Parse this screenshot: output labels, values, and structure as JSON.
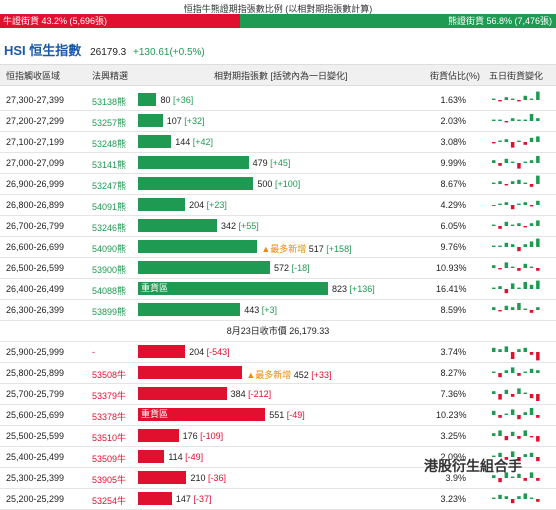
{
  "top": {
    "title": "恒指牛熊證期指張數比例 (以相對期指張數計算)",
    "bull_label": "牛證街貨 43.2% (5,696張)",
    "bear_label": "熊證街貨 56.8% (7,476張)",
    "bull_fraction": 0.432,
    "colors": {
      "bull": "#e0102e",
      "bear": "#1f9a52"
    }
  },
  "index": {
    "name": "HSI 恒生指數",
    "value": "26179.3",
    "change": "+130.61(+0.5%)"
  },
  "headers": {
    "range": "恒指觸收區域",
    "code": "法興精選",
    "contracts": "相對期指張數 [括號內為一日變化]",
    "share": "街貨佔比(%)",
    "five_day": "五日街貨變化"
  },
  "bear_rows": [
    {
      "range": "27,300-27,399",
      "code": "53138熊",
      "value": 80,
      "delta": "[+36]",
      "label": "",
      "share": "1.63%",
      "spark": [
        1,
        -1,
        2,
        1,
        -1,
        3,
        1,
        6
      ]
    },
    {
      "range": "27,200-27,299",
      "code": "53257熊",
      "value": 107,
      "delta": "[+32]",
      "label": "",
      "share": "2.03%",
      "spark": [
        1,
        1,
        -1,
        2,
        1,
        1,
        5,
        2
      ]
    },
    {
      "range": "27,100-27,199",
      "code": "53248熊",
      "value": 144,
      "delta": "[+42]",
      "label": "",
      "share": "3.08%",
      "spark": [
        -1,
        1,
        2,
        -4,
        1,
        -2,
        3,
        4
      ]
    },
    {
      "range": "27,000-27,099",
      "code": "53141熊",
      "value": 479,
      "delta": "[+45]",
      "label": "",
      "share": "9.99%",
      "spark": [
        2,
        -2,
        3,
        1,
        -4,
        1,
        2,
        5
      ]
    },
    {
      "range": "26,900-26,999",
      "code": "53247熊",
      "value": 500,
      "delta": "[+100]",
      "label": "",
      "share": "8.67%",
      "spark": [
        1,
        2,
        -1,
        2,
        3,
        1,
        -2,
        6
      ]
    },
    {
      "range": "26,800-26,899",
      "code": "54091熊",
      "value": 204,
      "delta": "[+23]",
      "label": "",
      "share": "4.29%",
      "spark": [
        0,
        1,
        2,
        -3,
        1,
        2,
        -1,
        3
      ]
    },
    {
      "range": "26,700-26,799",
      "code": "53246熊",
      "value": 342,
      "delta": "[+55]",
      "label": "",
      "share": "6.05%",
      "spark": [
        1,
        -2,
        3,
        1,
        2,
        -1,
        2,
        4
      ]
    },
    {
      "range": "26,600-26,699",
      "code": "54090熊",
      "value": 517,
      "delta": "[+158]",
      "label": "▲最多新增",
      "share": "9.76%",
      "spark": [
        1,
        1,
        3,
        2,
        -3,
        2,
        4,
        6
      ]
    },
    {
      "range": "26,500-26,599",
      "code": "53900熊",
      "value": 572,
      "delta": "[-18]",
      "label": "",
      "share": "10.93%",
      "spark": [
        2,
        -1,
        4,
        1,
        -2,
        3,
        1,
        -2
      ]
    },
    {
      "range": "26,400-26,499",
      "code": "54088熊",
      "value": 823,
      "delta": "[+136]",
      "label": "重貨區",
      "share": "16.41%",
      "spark": [
        1,
        2,
        -3,
        4,
        1,
        5,
        3,
        6
      ]
    },
    {
      "range": "26,300-26,399",
      "code": "53899熊",
      "value": 443,
      "delta": "[+3]",
      "label": "",
      "share": "8.59%",
      "spark": [
        2,
        -1,
        3,
        2,
        5,
        1,
        -2,
        2
      ]
    }
  ],
  "divider_text": "8月23日收市價 26,179.33",
  "bull_rows": [
    {
      "range": "25,900-25,999",
      "code": "-",
      "value": 204,
      "delta": "[-543]",
      "label": "",
      "share": "3.74%",
      "spark": [
        3,
        2,
        4,
        -5,
        2,
        3,
        -2,
        -6
      ]
    },
    {
      "range": "25,800-25,899",
      "code": "53508牛",
      "value": 452,
      "delta": "[+33]",
      "label": "▲最多新增",
      "share": "8.27%",
      "spark": [
        1,
        -3,
        2,
        4,
        -2,
        1,
        3,
        2
      ]
    },
    {
      "range": "25,700-25,799",
      "code": "53379牛",
      "value": 384,
      "delta": "[-212]",
      "label": "",
      "share": "7.36%",
      "spark": [
        2,
        -4,
        3,
        -2,
        4,
        1,
        -3,
        -5
      ]
    },
    {
      "range": "25,600-25,699",
      "code": "53378牛",
      "value": 551,
      "delta": "[-49]",
      "label": "重貨區",
      "share": "10.23%",
      "spark": [
        3,
        -2,
        1,
        4,
        -3,
        2,
        5,
        -2
      ]
    },
    {
      "range": "25,500-25,599",
      "code": "53510牛",
      "value": 176,
      "delta": "[-109]",
      "label": "",
      "share": "3.25%",
      "spark": [
        2,
        4,
        -3,
        3,
        -2,
        4,
        -1,
        -4
      ]
    },
    {
      "range": "25,400-25,499",
      "code": "53509牛",
      "value": 114,
      "delta": "[-49]",
      "label": "",
      "share": "2.09%",
      "spark": [
        1,
        3,
        -2,
        4,
        -3,
        2,
        3,
        -3
      ]
    },
    {
      "range": "25,300-25,399",
      "code": "53905牛",
      "value": 210,
      "delta": "[-36]",
      "label": "",
      "share": "3.9%",
      "spark": [
        2,
        -3,
        4,
        1,
        3,
        -2,
        4,
        -2
      ]
    },
    {
      "range": "25,200-25,299",
      "code": "53254牛",
      "value": 147,
      "delta": "[-37]",
      "label": "",
      "share": "3.23%",
      "spark": [
        1,
        3,
        2,
        -3,
        2,
        4,
        1,
        -2
      ]
    }
  ],
  "watermark": "港股衍生組合手"
}
